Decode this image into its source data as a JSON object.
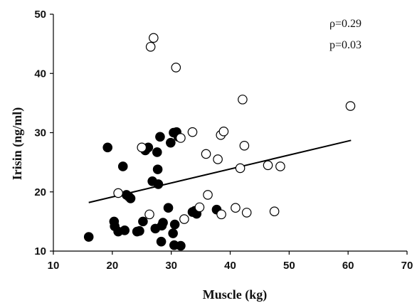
{
  "chart_data": {
    "type": "scatter",
    "xlabel": "Muscle (kg)",
    "ylabel": "Irisin  (ng/ml)",
    "xlim": [
      10,
      70
    ],
    "ylim": [
      10,
      50
    ],
    "x_ticks": [
      10,
      20,
      30,
      40,
      50,
      60,
      70
    ],
    "y_ticks": [
      10,
      20,
      30,
      40,
      50
    ],
    "x_tick_labels": [
      "10",
      "20",
      "30",
      "40",
      "50",
      "60",
      "70"
    ],
    "y_tick_labels": [
      "10",
      "20",
      "30",
      "40",
      "50"
    ],
    "grid": false,
    "annotations": {
      "rho": "ρ=0.29",
      "p": "p=0.03"
    },
    "trendline": {
      "x": [
        16,
        60.5
      ],
      "y": [
        18.2,
        28.7
      ]
    },
    "series": [
      {
        "marker": "filled-circle",
        "color": "#000000",
        "points": [
          [
            16,
            12.4
          ],
          [
            19.2,
            27.5
          ],
          [
            20.3,
            15.0
          ],
          [
            20.4,
            14.2
          ],
          [
            21.0,
            13.3
          ],
          [
            21.8,
            24.3
          ],
          [
            22.1,
            13.5
          ],
          [
            22.4,
            19.5
          ],
          [
            22.8,
            19.2
          ],
          [
            23.1,
            18.9
          ],
          [
            24.2,
            13.3
          ],
          [
            24.6,
            13.4
          ],
          [
            25.2,
            15.0
          ],
          [
            25.6,
            27.0
          ],
          [
            26.1,
            27.5
          ],
          [
            26.8,
            21.8
          ],
          [
            27.3,
            13.8
          ],
          [
            27.6,
            26.7
          ],
          [
            27.7,
            23.8
          ],
          [
            27.8,
            21.3
          ],
          [
            28.1,
            29.3
          ],
          [
            28.3,
            11.6
          ],
          [
            28.4,
            14.3
          ],
          [
            28.6,
            14.8
          ],
          [
            29.5,
            17.3
          ],
          [
            29.9,
            28.3
          ],
          [
            30.3,
            13.0
          ],
          [
            30.4,
            30.0
          ],
          [
            30.5,
            11.0
          ],
          [
            30.6,
            14.5
          ],
          [
            30.9,
            30.1
          ],
          [
            31.2,
            29.3
          ],
          [
            31.6,
            10.9
          ],
          [
            33.6,
            16.6
          ],
          [
            34.0,
            16.8
          ],
          [
            34.3,
            16.3
          ],
          [
            37.7,
            17.0
          ]
        ]
      },
      {
        "marker": "open-circle",
        "color": "#000000",
        "points": [
          [
            21,
            19.8
          ],
          [
            25.0,
            27.5
          ],
          [
            26.3,
            16.2
          ],
          [
            26.5,
            44.5
          ],
          [
            27.0,
            46.0
          ],
          [
            30.8,
            41.0
          ],
          [
            31.6,
            29.1
          ],
          [
            32.2,
            15.4
          ],
          [
            33.6,
            30.1
          ],
          [
            34.8,
            17.4
          ],
          [
            35.9,
            26.4
          ],
          [
            36.2,
            19.5
          ],
          [
            37.9,
            25.5
          ],
          [
            38.4,
            29.6
          ],
          [
            38.5,
            16.2
          ],
          [
            38.9,
            30.2
          ],
          [
            40.9,
            17.3
          ],
          [
            41.7,
            24.0
          ],
          [
            42.1,
            35.6
          ],
          [
            42.4,
            27.8
          ],
          [
            42.8,
            16.5
          ],
          [
            46.4,
            24.5
          ],
          [
            47.5,
            16.7
          ],
          [
            48.5,
            24.3
          ],
          [
            60.4,
            34.5
          ]
        ]
      }
    ]
  }
}
